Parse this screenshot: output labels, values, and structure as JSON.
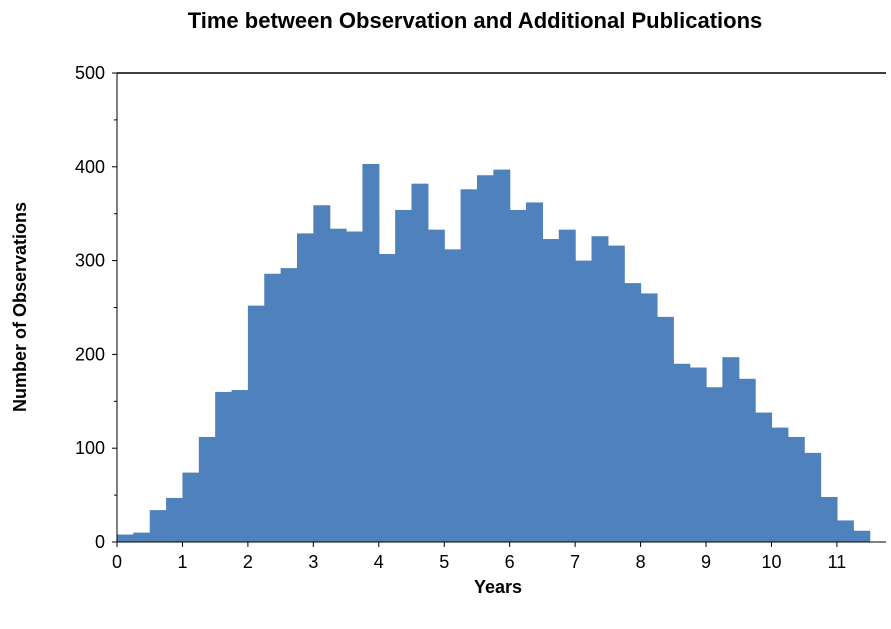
{
  "chart_data": {
    "type": "bar",
    "title": "Time between Observation and Additional Publications",
    "xlabel": "Years",
    "ylabel": "Number of Observations",
    "bar_color": "#4F81BD",
    "bin_width": 0.25,
    "xlim": [
      0,
      11.75
    ],
    "ylim": [
      0,
      500
    ],
    "x_ticks": [
      0,
      1,
      2,
      3,
      4,
      5,
      6,
      7,
      8,
      9,
      10,
      11
    ],
    "x_tick_labels": [
      "0",
      "1",
      "2",
      "3",
      "4",
      "5",
      "6",
      "7",
      "8",
      "9",
      "10",
      "11"
    ],
    "y_ticks": [
      0,
      100,
      200,
      300,
      400,
      500
    ],
    "y_tick_labels": [
      "0",
      "100",
      "200",
      "300",
      "400",
      "500"
    ],
    "bins": [
      0.125,
      0.375,
      0.625,
      0.875,
      1.125,
      1.375,
      1.625,
      1.875,
      2.125,
      2.375,
      2.625,
      2.875,
      3.125,
      3.375,
      3.625,
      3.875,
      4.125,
      4.375,
      4.625,
      4.875,
      5.125,
      5.375,
      5.625,
      5.875,
      6.125,
      6.375,
      6.625,
      6.875,
      7.125,
      7.375,
      7.625,
      7.875,
      8.125,
      8.375,
      8.625,
      8.875,
      9.125,
      9.375,
      9.625,
      9.875,
      10.125,
      10.375,
      10.625,
      10.875,
      11.125,
      11.375,
      11.625
    ],
    "values": [
      8,
      10,
      34,
      47,
      74,
      112,
      160,
      162,
      252,
      286,
      292,
      329,
      359,
      334,
      331,
      403,
      307,
      354,
      382,
      333,
      312,
      376,
      391,
      397,
      354,
      362,
      323,
      333,
      300,
      326,
      316,
      276,
      265,
      240,
      190,
      186,
      165,
      197,
      174,
      138,
      122,
      112,
      95,
      48,
      23,
      12,
      0
    ],
    "grid": false,
    "legend": "none"
  }
}
